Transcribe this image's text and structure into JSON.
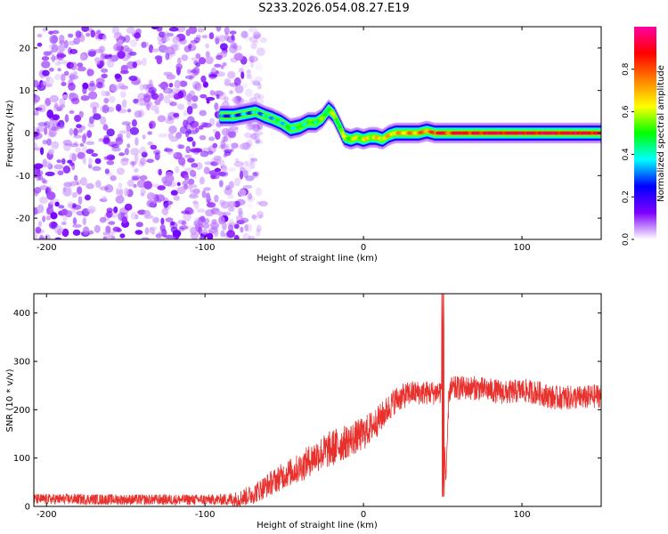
{
  "title": "S233.2026.054.08.27.E19",
  "chart_data": [
    {
      "type": "heatmap",
      "name": "spectrogram",
      "xlabel": "Height of straight line (km)",
      "ylabel": "Frequency (Hz)",
      "xlim": [
        -208,
        150
      ],
      "ylim": [
        -25,
        25
      ],
      "xticks": [
        -200,
        -100,
        0,
        100
      ],
      "yticks": [
        -20,
        -10,
        0,
        10,
        20
      ],
      "noise_region_x": [
        -208,
        -75
      ],
      "ridge": {
        "x": [
          -90,
          -82,
          -75,
          -68,
          -62,
          -58,
          -52,
          -46,
          -40,
          -35,
          -30,
          -26,
          -22,
          -19,
          -15,
          -12,
          -8,
          -4,
          0,
          4,
          8,
          12,
          16,
          20,
          25,
          30,
          35,
          40,
          45,
          50,
          60,
          70,
          80,
          90,
          100,
          110,
          120,
          130,
          140,
          150
        ],
        "y": [
          4,
          4,
          4.5,
          5,
          4,
          3.5,
          2.5,
          1,
          1.5,
          2.5,
          2.5,
          3.5,
          5.5,
          4.5,
          1.5,
          -1,
          -1.5,
          -1,
          -1.5,
          -1,
          -1,
          -1.5,
          -0.5,
          0,
          0,
          0,
          0,
          0.5,
          0,
          0,
          0,
          0,
          0,
          0,
          0,
          0,
          0,
          0,
          0,
          0
        ]
      },
      "colorbar": {
        "label": "Normalized spectral amplitude",
        "min": 0.0,
        "max": 1.0,
        "ticks": [
          0.0,
          0.2,
          0.4,
          0.6,
          0.8
        ],
        "tick_labels": [
          "0.0",
          "0.2",
          "0.4",
          "0.6",
          "0.8"
        ],
        "colors": [
          "#ffffff",
          "#7f00ff",
          "#0000ff",
          "#00ffff",
          "#00ff00",
          "#ffff00",
          "#ff8000",
          "#ff0000",
          "#ff00a0"
        ]
      }
    },
    {
      "type": "line",
      "name": "snr",
      "xlabel": "Height of straight line (km)",
      "ylabel": "SNR (10 * v/v)",
      "xlim": [
        -208,
        150
      ],
      "ylim": [
        0,
        440
      ],
      "xticks": [
        -200,
        -100,
        0,
        100
      ],
      "yticks": [
        0,
        100,
        200,
        300,
        400
      ],
      "color": "#e8302c",
      "series": [
        {
          "name": "SNR",
          "x": [
            -208,
            -180,
            -150,
            -120,
            -90,
            -80,
            -70,
            -60,
            -50,
            -40,
            -30,
            -20,
            -10,
            0,
            10,
            20,
            30,
            40,
            45,
            50,
            52,
            54,
            60,
            70,
            80,
            90,
            100,
            110,
            120,
            130,
            140,
            150
          ],
          "y": [
            15,
            15,
            14,
            14,
            14,
            15,
            25,
            45,
            65,
            80,
            105,
            120,
            135,
            150,
            180,
            220,
            235,
            235,
            235,
            240,
            50,
            240,
            245,
            245,
            240,
            235,
            240,
            235,
            225,
            225,
            225,
            230
          ],
          "noise": [
            8,
            8,
            8,
            8,
            8,
            12,
            15,
            18,
            20,
            22,
            25,
            28,
            25,
            25,
            22,
            20,
            18,
            18,
            18,
            20,
            0,
            20,
            18,
            18,
            18,
            18,
            18,
            18,
            18,
            18,
            18,
            18
          ]
        }
      ],
      "spikes": [
        {
          "x": 50.8,
          "y": 440
        },
        {
          "x": 50.2,
          "y": 360
        },
        {
          "x": 50.0,
          "y": 20
        },
        {
          "x": 49.6,
          "y": 55
        }
      ]
    }
  ]
}
